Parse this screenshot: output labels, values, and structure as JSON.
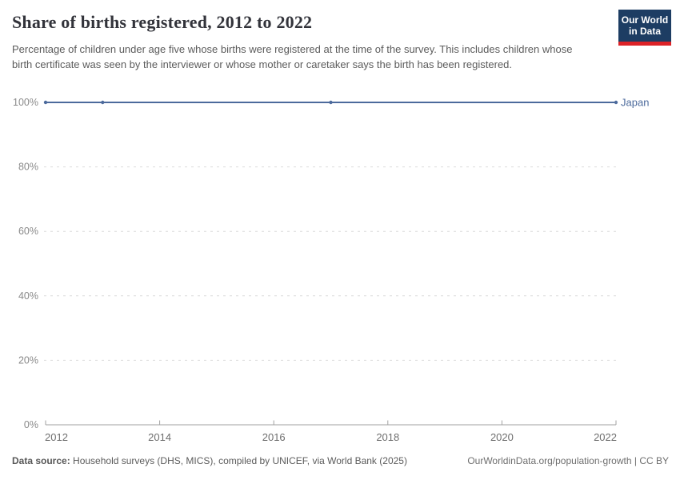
{
  "header": {
    "title": "Share of births registered, 2012 to 2022",
    "subtitle": "Percentage of children under age five whose births were registered at the time of the survey. This includes children whose birth certificate was seen by the interviewer or whose mother or caretaker says the birth has been registered.",
    "logo": {
      "line1": "Our World",
      "line2": "in Data",
      "bg_color": "#1d3d63",
      "accent_color": "#dc2227"
    }
  },
  "chart_data": {
    "type": "line",
    "title": "Share of births registered, 2012 to 2022",
    "x": [
      2012,
      2013,
      2017,
      2022
    ],
    "series": [
      {
        "name": "Japan",
        "color": "#4c6a9c",
        "values": [
          100,
          100,
          100,
          100
        ]
      }
    ],
    "x_ticks": [
      2012,
      2014,
      2016,
      2018,
      2020,
      2022
    ],
    "y_ticks": [
      0,
      20,
      40,
      60,
      80,
      100
    ],
    "y_tick_suffix": "%",
    "xlim": [
      2012,
      2022
    ],
    "ylim": [
      0,
      100
    ],
    "grid": "horizontal-dashed",
    "gridline_color": "#dcdcdc",
    "axis_color": "#a1a1a1",
    "x_label_color": "#6e6e6e",
    "y_label_color": "#8a8a8a",
    "legend_position": "end-of-line"
  },
  "footer": {
    "datasource_label": "Data source:",
    "datasource_text": " Household surveys (DHS, MICS), compiled by UNICEF, via World Bank (2025)",
    "attribution": "OurWorldinData.org/population-growth | CC BY"
  }
}
